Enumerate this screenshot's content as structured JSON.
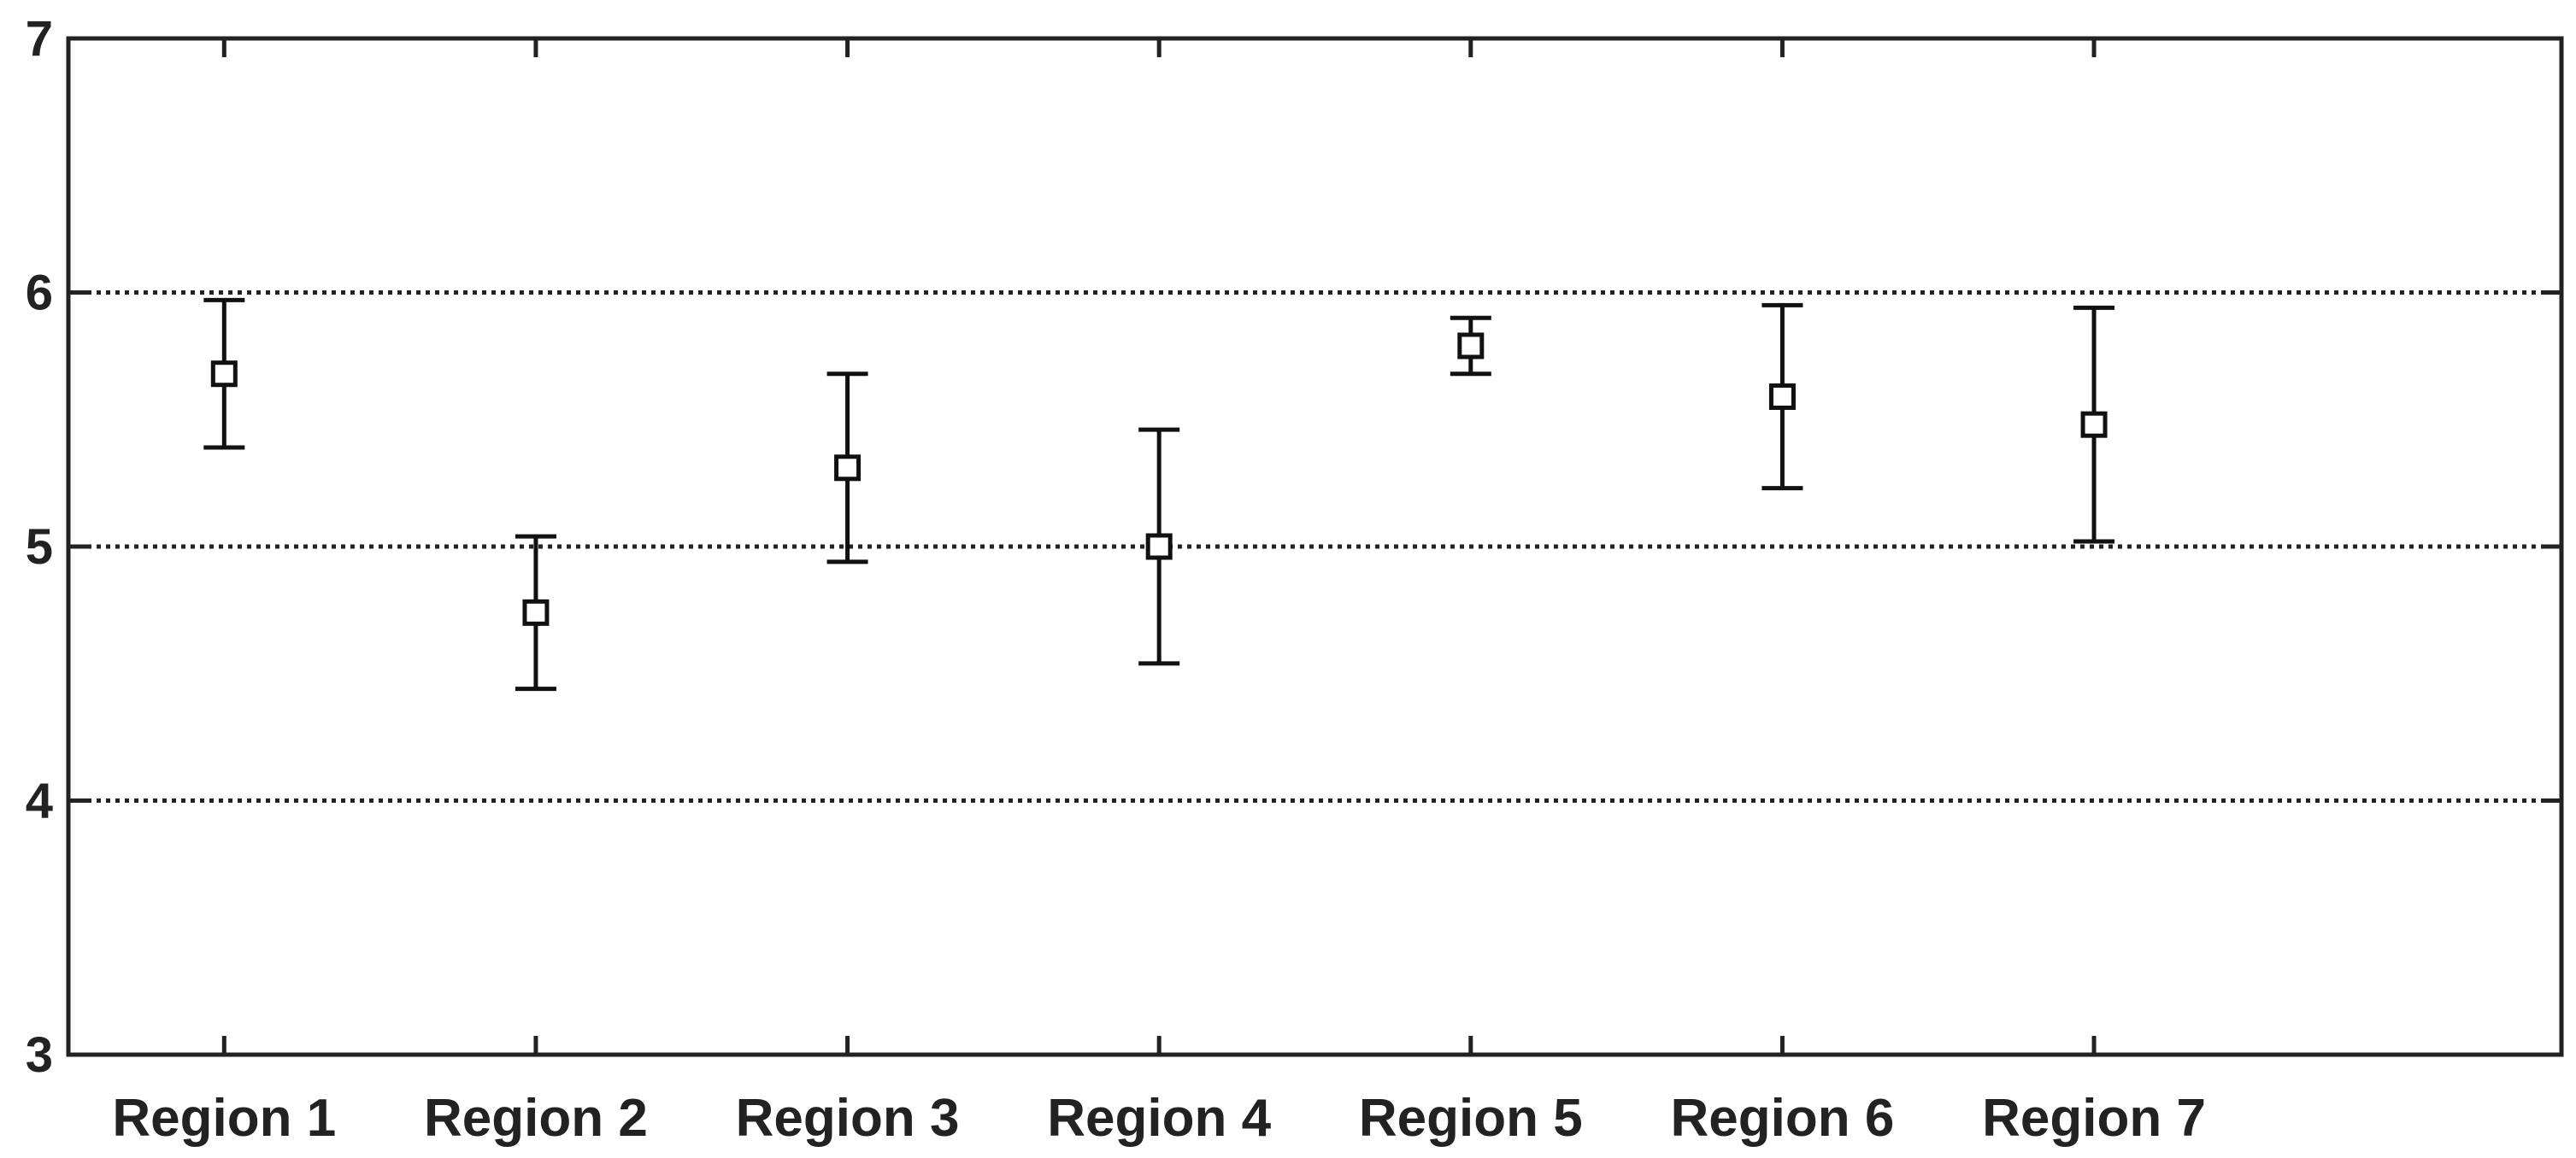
{
  "chart_data": {
    "type": "scatter",
    "title": "",
    "xlabel": "",
    "ylabel": "",
    "categories": [
      "Region 1",
      "Region 2",
      "Region 3",
      "Region 4",
      "Region 5",
      "Region 6",
      "Region 7"
    ],
    "series": [
      {
        "values": [
          5.68,
          4.74,
          5.31,
          5.0,
          5.79,
          5.59,
          5.48
        ],
        "lower": [
          5.39,
          4.44,
          4.94,
          4.54,
          5.68,
          5.23,
          5.02
        ],
        "upper": [
          5.97,
          5.04,
          5.68,
          5.46,
          5.9,
          5.95,
          5.94
        ],
        "marker": "square",
        "color": "#111111"
      }
    ],
    "ylim": [
      3,
      7
    ],
    "yticks": [
      3,
      4,
      5,
      6,
      7
    ],
    "ytick_labels": [
      "3",
      "4",
      "5",
      "6",
      "7"
    ],
    "grid": {
      "horizontal": true,
      "style": "dotted",
      "lines_at": [
        4,
        5,
        6
      ]
    },
    "legend": "none"
  }
}
